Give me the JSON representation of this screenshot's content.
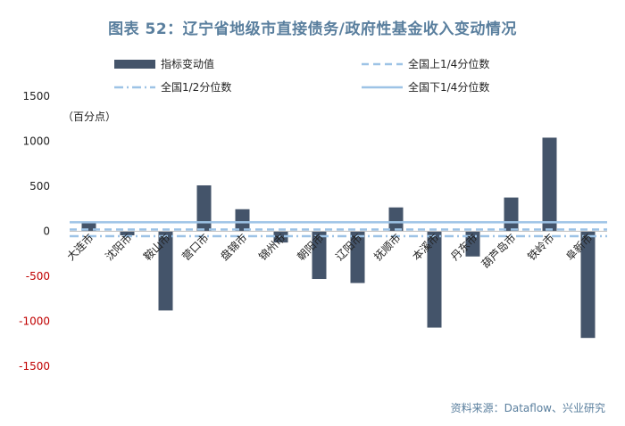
{
  "title": "图表 52：辽宁省地级市直接债务/政府性基金收入变动情况",
  "source": "资料来源：Dataflow、兴业研究",
  "chart_data": {
    "type": "bar",
    "ylabel": "（百分点）",
    "ylim": [
      -1500,
      1500
    ],
    "yticks": [
      1500,
      1000,
      500,
      0,
      -500,
      -1000,
      -1500
    ],
    "categories": [
      "大连市",
      "沈阳市",
      "鞍山市",
      "营口市",
      "盘锦市",
      "锦州市",
      "朝阳市",
      "辽阳市",
      "抚顺市",
      "本溪市",
      "丹东市",
      "葫芦岛市",
      "铁岭市",
      "阜新市"
    ],
    "series": [
      {
        "name": "指标变动值",
        "values": [
          95,
          -45,
          -880,
          510,
          245,
          -125,
          -530,
          -575,
          265,
          -1070,
          -280,
          375,
          1040,
          -1185
        ]
      }
    ],
    "reference_lines": [
      {
        "name": "全国上1/4分位数",
        "value": 20,
        "style": "dashed"
      },
      {
        "name": "全国1/2分位数",
        "value": -55,
        "style": "dashdot"
      },
      {
        "name": "全国下1/4分位数",
        "value": 100,
        "style": "solid"
      }
    ],
    "legend_placement": "top",
    "colors": {
      "bar": "#44546a",
      "ref": "#9dc3e6",
      "negative_tick": "#c00000"
    }
  }
}
